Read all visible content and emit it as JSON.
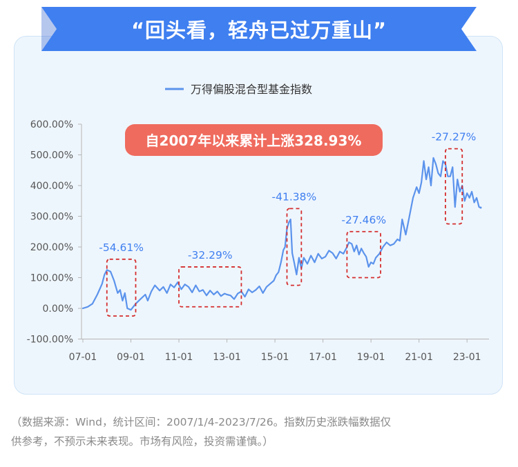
{
  "header": {
    "title": "“回头看，轻舟已过万重山”"
  },
  "colors": {
    "banner_blue": "#3f7ff0",
    "banner_dark": "#2d5fcf",
    "line_blue": "#5b93ec",
    "callout_red": "#ef6b5e",
    "box_red": "#d42e2e",
    "label_blue": "#3f7ff0",
    "card_bg": "#eef6fd"
  },
  "chart_data": {
    "type": "line",
    "title": "",
    "xlabel": "",
    "ylabel": "",
    "legend": {
      "position": "top-center",
      "label": "万得偏股混合型基金指数"
    },
    "y_ticks": [
      "600.00%",
      "500.00%",
      "400.00%",
      "300.00%",
      "200.00%",
      "100.00%",
      "0.00%",
      "-100.00%"
    ],
    "x_ticks": [
      "07-01",
      "09-01",
      "11-01",
      "13-01",
      "15-01",
      "17-01",
      "19-01",
      "21-01",
      "23-01"
    ],
    "ylim": [
      -100,
      600
    ],
    "xlim": [
      2007.0,
      2023.8
    ],
    "grid": false,
    "series": [
      {
        "name": "万得偏股混合型基金指数",
        "x": [
          2007.0,
          2007.2,
          2007.4,
          2007.6,
          2007.8,
          2007.9,
          2008.0,
          2008.15,
          2008.3,
          2008.45,
          2008.55,
          2008.65,
          2008.75,
          2008.85,
          2009.0,
          2009.2,
          2009.4,
          2009.6,
          2009.7,
          2009.85,
          2010.0,
          2010.2,
          2010.35,
          2010.5,
          2010.65,
          2010.8,
          2010.95,
          2011.1,
          2011.25,
          2011.4,
          2011.55,
          2011.7,
          2011.85,
          2012.0,
          2012.15,
          2012.3,
          2012.45,
          2012.6,
          2012.75,
          2012.9,
          2013.0,
          2013.15,
          2013.3,
          2013.45,
          2013.6,
          2013.75,
          2013.9,
          2014.05,
          2014.2,
          2014.35,
          2014.5,
          2014.65,
          2014.8,
          2014.95,
          2015.05,
          2015.15,
          2015.25,
          2015.35,
          2015.42,
          2015.5,
          2015.58,
          2015.65,
          2015.72,
          2015.8,
          2015.9,
          2016.0,
          2016.1,
          2016.2,
          2016.35,
          2016.5,
          2016.65,
          2016.8,
          2016.95,
          2017.1,
          2017.25,
          2017.4,
          2017.55,
          2017.7,
          2017.85,
          2018.0,
          2018.08,
          2018.2,
          2018.3,
          2018.4,
          2018.5,
          2018.6,
          2018.7,
          2018.8,
          2018.9,
          2019.0,
          2019.1,
          2019.2,
          2019.35,
          2019.5,
          2019.65,
          2019.8,
          2019.95,
          2020.1,
          2020.2,
          2020.3,
          2020.45,
          2020.6,
          2020.75,
          2020.9,
          2021.0,
          2021.1,
          2021.2,
          2021.3,
          2021.4,
          2021.5,
          2021.6,
          2021.7,
          2021.8,
          2021.9,
          2022.0,
          2022.1,
          2022.2,
          2022.3,
          2022.4,
          2022.5,
          2022.6,
          2022.7,
          2022.8,
          2022.9,
          2023.0,
          2023.1,
          2023.2,
          2023.3,
          2023.4,
          2023.5,
          2023.57
        ],
        "values": [
          0,
          5,
          15,
          45,
          80,
          110,
          125,
          120,
          90,
          50,
          60,
          25,
          50,
          0,
          -5,
          15,
          30,
          45,
          25,
          55,
          75,
          58,
          70,
          50,
          78,
          68,
          85,
          62,
          78,
          70,
          52,
          75,
          55,
          60,
          42,
          58,
          45,
          55,
          40,
          48,
          45,
          42,
          30,
          48,
          55,
          38,
          62,
          52,
          60,
          72,
          50,
          70,
          80,
          90,
          108,
          118,
          150,
          190,
          200,
          260,
          280,
          290,
          180,
          150,
          110,
          165,
          130,
          165,
          145,
          172,
          150,
          178,
          162,
          168,
          188,
          180,
          162,
          185,
          178,
          200,
          215,
          210,
          185,
          205,
          175,
          195,
          180,
          168,
          135,
          150,
          145,
          165,
          178,
          200,
          215,
          205,
          210,
          225,
          220,
          290,
          240,
          300,
          360,
          395,
          375,
          410,
          480,
          420,
          460,
          400,
          490,
          470,
          440,
          430,
          480,
          470,
          430,
          430,
          460,
          330,
          420,
          380,
          400,
          350,
          375,
          360,
          380,
          345,
          360,
          330,
          328
        ]
      }
    ],
    "annotations": [
      {
        "text": "自2007年以来累计上涨328.93%",
        "type": "callout"
      },
      {
        "text": "-54.61%",
        "x_range": [
          2008.0,
          2009.2
        ],
        "y_range": [
          -25,
          160
        ]
      },
      {
        "text": "-32.29%",
        "x_range": [
          2011.0,
          2013.6
        ],
        "y_range": [
          5,
          135
        ]
      },
      {
        "text": "-41.38%",
        "x_range": [
          2015.5,
          2016.1
        ],
        "y_range": [
          75,
          325
        ]
      },
      {
        "text": "-27.46%",
        "x_range": [
          2018.0,
          2019.4
        ],
        "y_range": [
          100,
          250
        ]
      },
      {
        "text": "-27.27%",
        "x_range": [
          2022.1,
          2022.8
        ],
        "y_range": [
          275,
          520
        ]
      }
    ]
  },
  "footnote": {
    "line1": "（数据来源：Wind，统计区间：2007/1/4-2023/7/26。指数历史涨跌幅数据仅",
    "line2": "供参考，不预示未来表现。市场有风险，投资需谨慎。）"
  }
}
